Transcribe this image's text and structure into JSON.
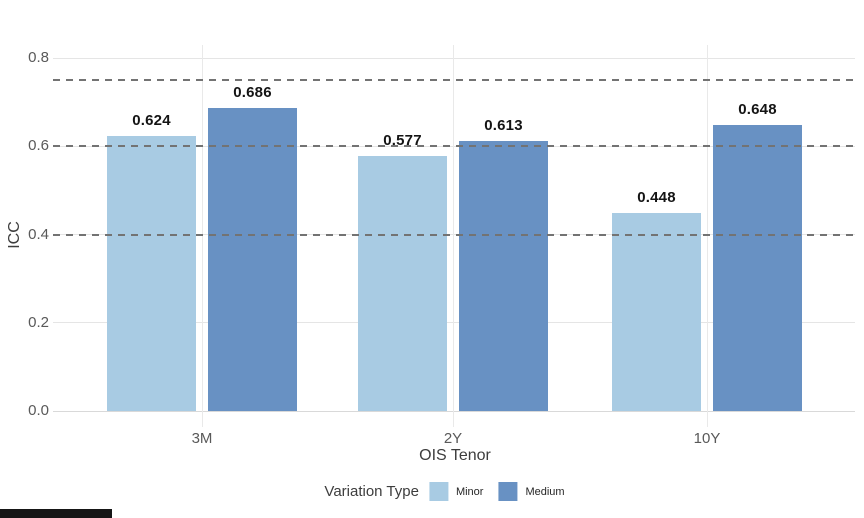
{
  "chart_data": {
    "type": "bar",
    "categories": [
      "3M",
      "2Y",
      "10Y"
    ],
    "series": [
      {
        "name": "Minor",
        "color": "#a8cbe3",
        "values": [
          0.624,
          0.577,
          0.448
        ]
      },
      {
        "name": "Medium",
        "color": "#6891c3",
        "values": [
          0.686,
          0.613,
          0.648
        ]
      }
    ],
    "value_labels": [
      [
        "0.624",
        "0.577",
        "0.448"
      ],
      [
        "0.686",
        "0.613",
        "0.648"
      ]
    ],
    "xlabel": "OIS Tenor",
    "ylabel": "ICC",
    "ylim": [
      0,
      0.8
    ],
    "ytick_labels": [
      "0.0",
      "0.2",
      "0.4",
      "0.6",
      "0.8"
    ],
    "ytick_values": [
      0,
      0.2,
      0.4,
      0.6,
      0.8
    ],
    "reference_lines": [
      0.75,
      0.6,
      0.4
    ],
    "grid": true,
    "legend": {
      "title": "Variation Type",
      "position": "bottom",
      "entries": [
        "Minor",
        "Medium"
      ]
    }
  },
  "colors": {
    "grid": "#e5e5e5",
    "vgrid": "#e9e9e9",
    "axis_baseline": "#d9d9d9",
    "reference_dash": "#737373",
    "progress_bar": "#161616",
    "background": "#ffffff"
  }
}
